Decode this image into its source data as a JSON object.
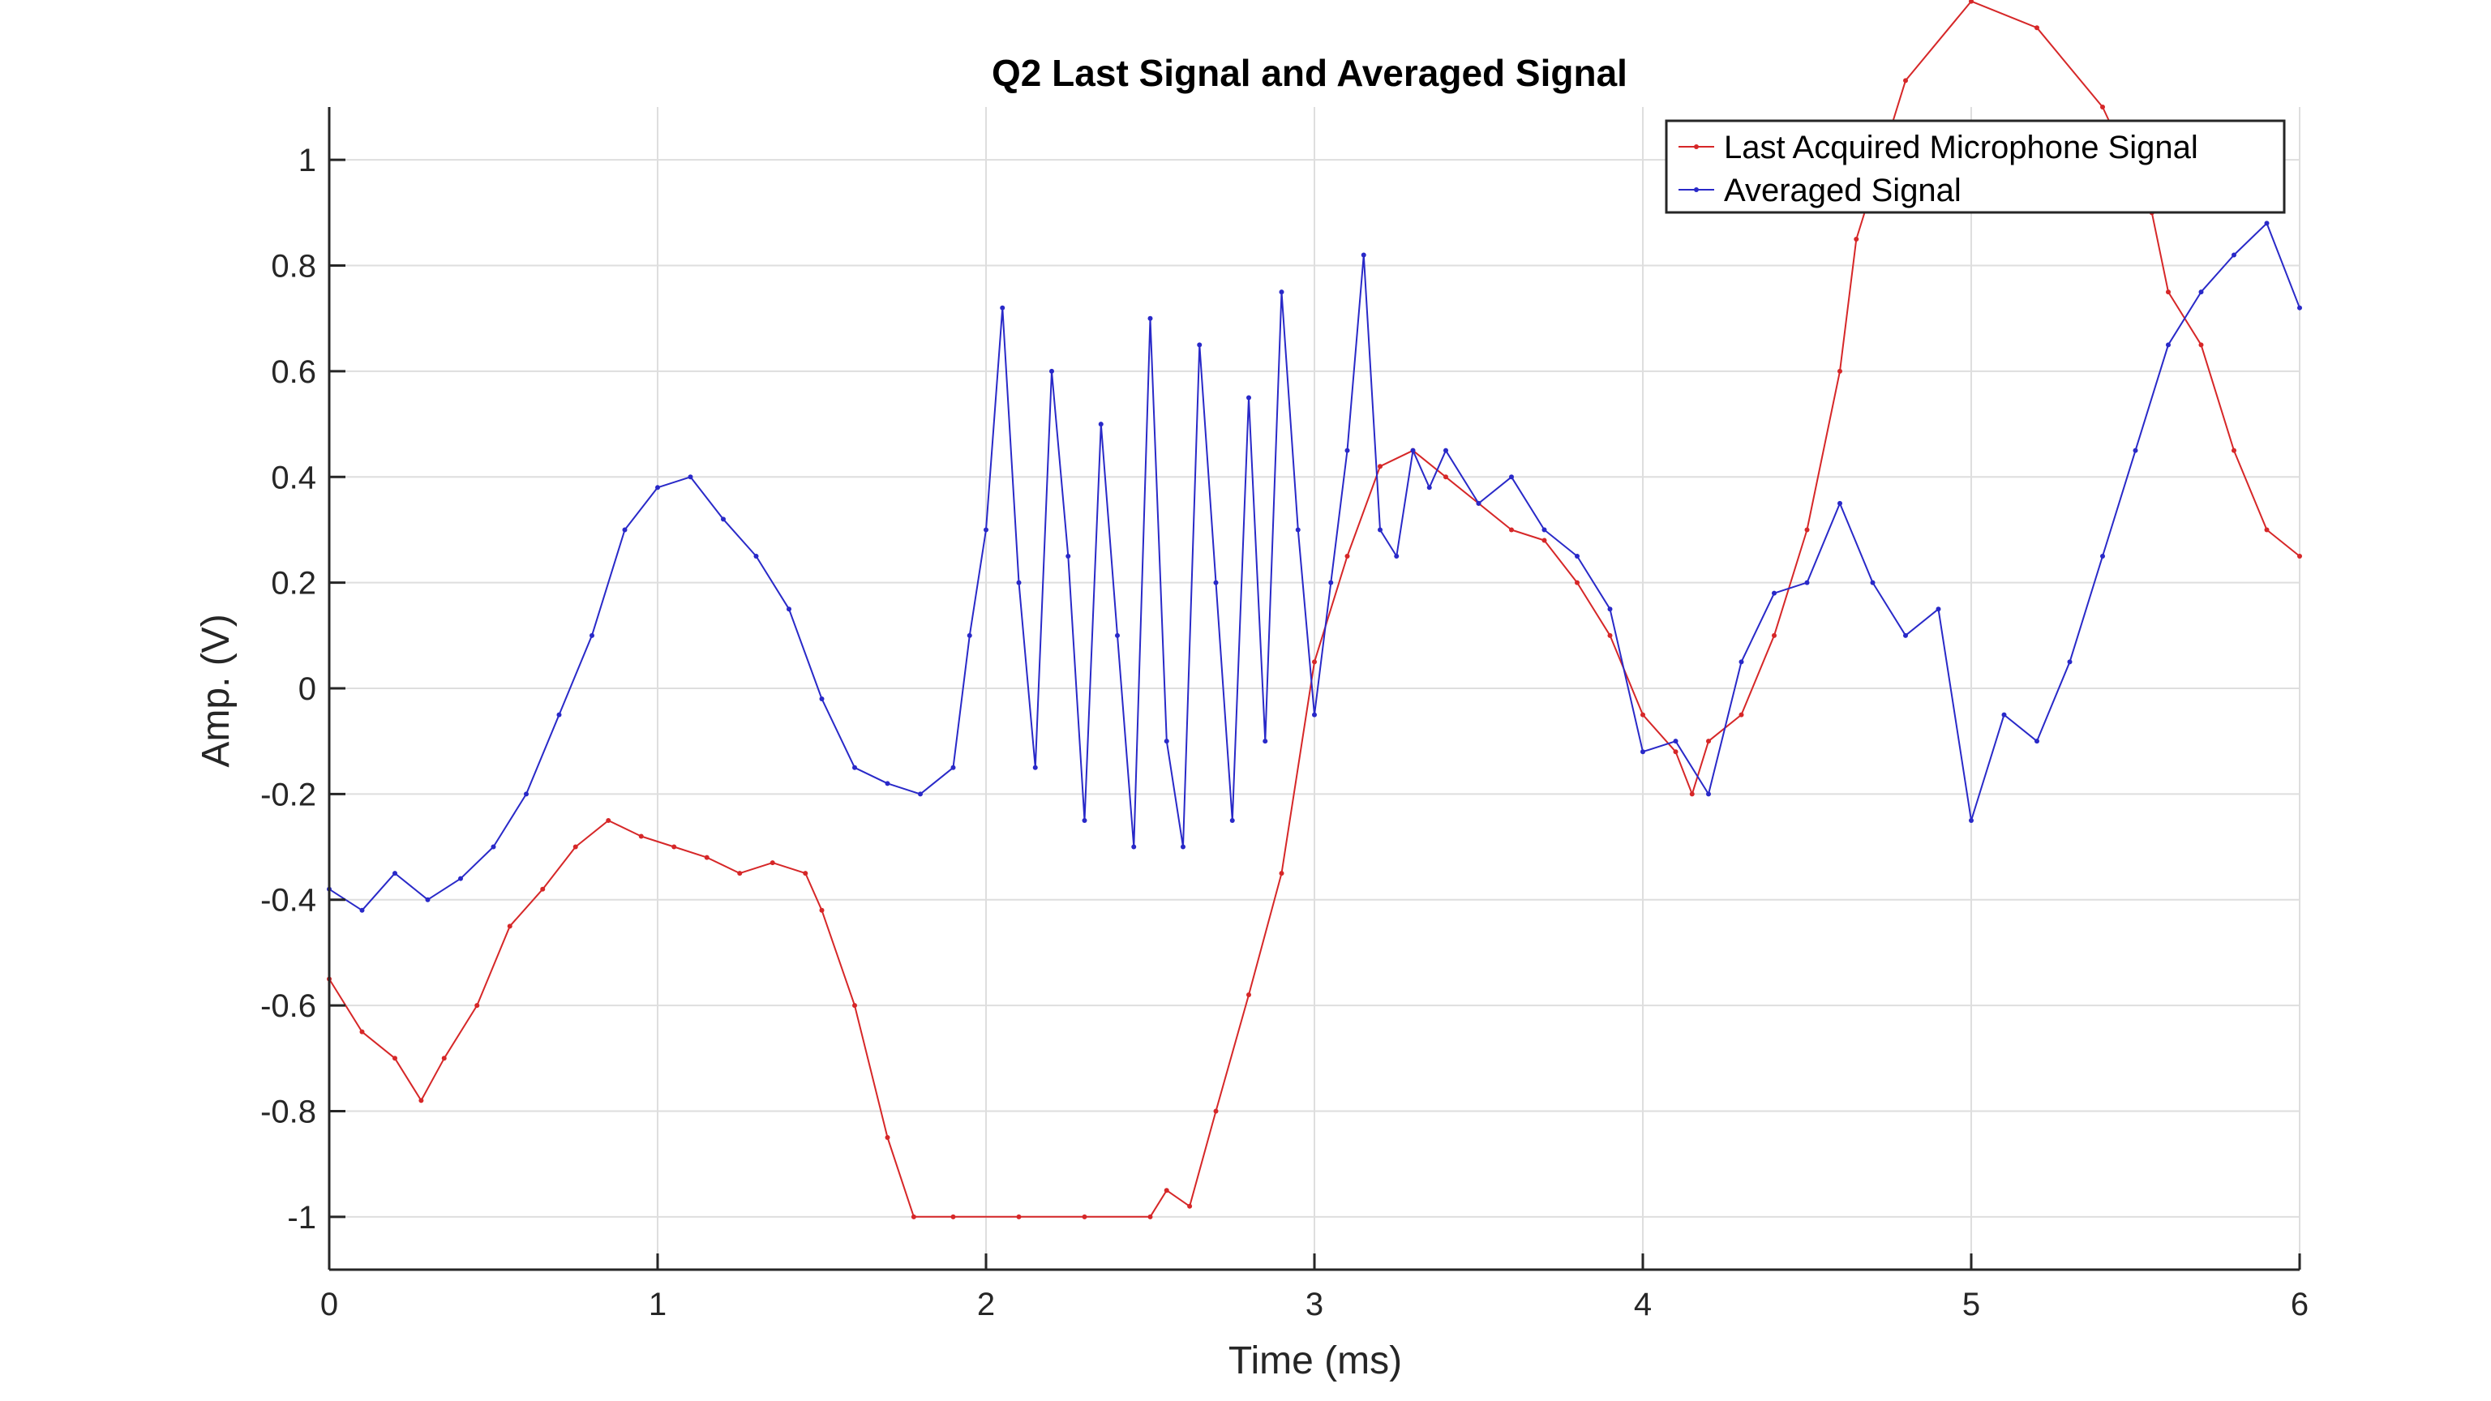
{
  "chart_data": {
    "type": "line",
    "title": "Q2 Last Signal and Averaged Signal",
    "xlabel": "Time (ms)",
    "ylabel": "Amp. (V)",
    "xlim": [
      0,
      6
    ],
    "ylim": [
      -1.1,
      1.1
    ],
    "x_ticks": [
      0,
      1,
      2,
      3,
      4,
      5,
      6
    ],
    "x_tick_labels": [
      "0",
      "1",
      "2",
      "3",
      "4",
      "5",
      "6"
    ],
    "y_ticks": [
      -1,
      -0.8,
      -0.6,
      -0.4,
      -0.2,
      0,
      0.2,
      0.4,
      0.6,
      0.8,
      1
    ],
    "y_tick_labels": [
      "-1",
      "-0.8",
      "-0.6",
      "-0.4",
      "-0.2",
      "0",
      "0.2",
      "0.4",
      "0.6",
      "0.8",
      "1"
    ],
    "grid": true,
    "legend_position": "top-right",
    "series": [
      {
        "name": "Last Acquired Microphone Signal",
        "color": "#d62728",
        "x": [
          0,
          0.1,
          0.2,
          0.28,
          0.35,
          0.45,
          0.55,
          0.65,
          0.75,
          0.85,
          0.95,
          1.05,
          1.15,
          1.25,
          1.35,
          1.45,
          1.5,
          1.6,
          1.7,
          1.78,
          1.9,
          2.1,
          2.3,
          2.5,
          2.55,
          2.62,
          2.7,
          2.8,
          2.9,
          3.0,
          3.1,
          3.2,
          3.3,
          3.4,
          3.5,
          3.6,
          3.7,
          3.8,
          3.9,
          4.0,
          4.1,
          4.15,
          4.2,
          4.3,
          4.4,
          4.5,
          4.6,
          4.65,
          4.8,
          5.0,
          5.2,
          5.4,
          5.55,
          5.6,
          5.7,
          5.8,
          5.9,
          6.0
        ],
        "y": [
          -0.55,
          -0.65,
          -0.7,
          -0.78,
          -0.7,
          -0.6,
          -0.45,
          -0.38,
          -0.3,
          -0.25,
          -0.28,
          -0.3,
          -0.32,
          -0.35,
          -0.33,
          -0.35,
          -0.42,
          -0.6,
          -0.85,
          -1.0,
          -1.0,
          -1.0,
          -1.0,
          -1.0,
          -0.95,
          -0.98,
          -0.8,
          -0.58,
          -0.35,
          0.05,
          0.25,
          0.42,
          0.45,
          0.4,
          0.35,
          0.3,
          0.28,
          0.2,
          0.1,
          -0.05,
          -0.12,
          -0.2,
          -0.1,
          -0.05,
          0.1,
          0.3,
          0.6,
          0.85,
          1.15,
          1.3,
          1.25,
          1.1,
          0.9,
          0.75,
          0.65,
          0.45,
          0.3,
          0.25
        ]
      },
      {
        "name": "Averaged Signal",
        "color": "#2929c8",
        "x": [
          0,
          0.1,
          0.2,
          0.3,
          0.4,
          0.5,
          0.6,
          0.7,
          0.8,
          0.9,
          1.0,
          1.1,
          1.2,
          1.3,
          1.4,
          1.5,
          1.6,
          1.7,
          1.8,
          1.9,
          1.95,
          2.0,
          2.05,
          2.1,
          2.15,
          2.2,
          2.25,
          2.3,
          2.35,
          2.4,
          2.45,
          2.5,
          2.55,
          2.6,
          2.65,
          2.7,
          2.75,
          2.8,
          2.85,
          2.9,
          2.95,
          3.0,
          3.05,
          3.1,
          3.15,
          3.2,
          3.25,
          3.3,
          3.35,
          3.4,
          3.5,
          3.6,
          3.7,
          3.8,
          3.9,
          4.0,
          4.1,
          4.2,
          4.3,
          4.4,
          4.5,
          4.6,
          4.7,
          4.8,
          4.9,
          5.0,
          5.1,
          5.2,
          5.3,
          5.4,
          5.5,
          5.6,
          5.7,
          5.8,
          5.9,
          6.0
        ],
        "y": [
          -0.38,
          -0.42,
          -0.35,
          -0.4,
          -0.36,
          -0.3,
          -0.2,
          -0.05,
          0.1,
          0.3,
          0.38,
          0.4,
          0.32,
          0.25,
          0.15,
          -0.02,
          -0.15,
          -0.18,
          -0.2,
          -0.15,
          0.1,
          0.3,
          0.72,
          0.2,
          -0.15,
          0.6,
          0.25,
          -0.25,
          0.5,
          0.1,
          -0.3,
          0.7,
          -0.1,
          -0.3,
          0.65,
          0.2,
          -0.25,
          0.55,
          -0.1,
          0.75,
          0.3,
          -0.05,
          0.2,
          0.45,
          0.82,
          0.3,
          0.25,
          0.45,
          0.38,
          0.45,
          0.35,
          0.4,
          0.3,
          0.25,
          0.15,
          -0.12,
          -0.1,
          -0.2,
          0.05,
          0.18,
          0.2,
          0.35,
          0.2,
          0.1,
          0.15,
          -0.25,
          -0.05,
          -0.1,
          0.05,
          0.25,
          0.45,
          0.65,
          0.75,
          0.82,
          0.88,
          0.72
        ]
      }
    ]
  }
}
